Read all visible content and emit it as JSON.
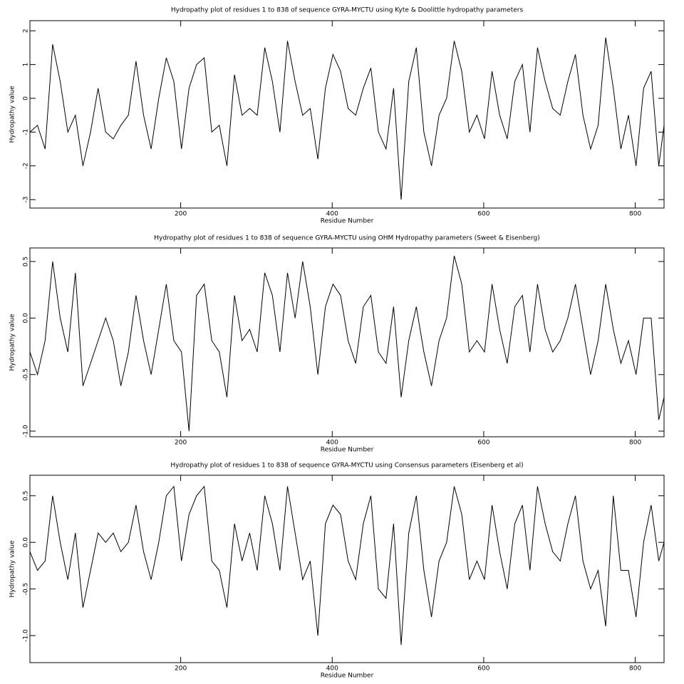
{
  "chart_data": [
    {
      "type": "line",
      "title": "Hydropathy plot of residues 1 to 838 of sequence GYRA-MYCTU using Kyte & Doolittle hydropathy parameters",
      "x_label": "Residue Number",
      "y_label": "Hydropathy value",
      "x": [
        1,
        11,
        21,
        31,
        41,
        51,
        61,
        71,
        81,
        91,
        101,
        111,
        121,
        131,
        141,
        151,
        161,
        171,
        181,
        191,
        201,
        211,
        221,
        231,
        241,
        251,
        261,
        271,
        281,
        291,
        301,
        311,
        321,
        331,
        341,
        351,
        361,
        371,
        381,
        391,
        401,
        411,
        421,
        431,
        441,
        451,
        461,
        471,
        481,
        491,
        501,
        511,
        521,
        531,
        541,
        551,
        561,
        571,
        581,
        591,
        601,
        611,
        621,
        631,
        641,
        651,
        661,
        671,
        681,
        691,
        701,
        711,
        721,
        731,
        741,
        751,
        761,
        771,
        781,
        791,
        801,
        811,
        821,
        831,
        838
      ],
      "series": [
        {
          "color": "#000000",
          "values": [
            -1.0,
            -0.8,
            -1.5,
            1.6,
            0.5,
            -1.0,
            -0.5,
            -2.0,
            -1.0,
            0.3,
            -1.0,
            -1.2,
            -0.8,
            -0.5,
            1.1,
            -0.5,
            -1.5,
            0.0,
            1.2,
            0.5,
            -1.5,
            0.3,
            1.0,
            1.2,
            -1.0,
            -0.8,
            -2.0,
            0.7,
            -0.5,
            -0.3,
            -0.5,
            1.5,
            0.5,
            -1.0,
            1.7,
            0.5,
            -0.5,
            -0.3,
            -1.8,
            0.3,
            1.3,
            0.8,
            -0.3,
            -0.5,
            0.3,
            0.9,
            -1.0,
            -1.5,
            0.3,
            -3.0,
            0.5,
            1.5,
            -1.0,
            -2.0,
            -0.5,
            0.0,
            1.7,
            0.8,
            -1.0,
            -0.5,
            -1.2,
            0.8,
            -0.5,
            -1.2,
            0.5,
            1.0,
            -1.0,
            1.5,
            0.5,
            -0.3,
            -0.5,
            0.5,
            1.3,
            -0.5,
            -1.5,
            -0.8,
            1.8,
            0.3,
            -1.5,
            -0.5,
            -2.0,
            0.3,
            0.8,
            -2.0,
            -0.8
          ]
        }
      ],
      "xlim": [
        1,
        838
      ],
      "xticks": [
        200,
        400,
        600,
        800
      ],
      "ylim": [
        -3.25,
        2.3
      ],
      "yticks": [
        -3,
        -2,
        -1,
        0,
        1,
        2
      ]
    },
    {
      "type": "line",
      "title": "Hydropathy plot of residues 1 to 838 of sequence GYRA-MYCTU using OHM  Hydropathy parameters (Sweet & Eisenberg)",
      "x_label": "Residue Number",
      "y_label": "Hydropathy value",
      "x": [
        1,
        11,
        21,
        31,
        41,
        51,
        61,
        71,
        81,
        91,
        101,
        111,
        121,
        131,
        141,
        151,
        161,
        171,
        181,
        191,
        201,
        211,
        221,
        231,
        241,
        251,
        261,
        271,
        281,
        291,
        301,
        311,
        321,
        331,
        341,
        351,
        361,
        371,
        381,
        391,
        401,
        411,
        421,
        431,
        441,
        451,
        461,
        471,
        481,
        491,
        501,
        511,
        521,
        531,
        541,
        551,
        561,
        571,
        581,
        591,
        601,
        611,
        621,
        631,
        641,
        651,
        661,
        671,
        681,
        691,
        701,
        711,
        721,
        731,
        741,
        751,
        761,
        771,
        781,
        791,
        801,
        811,
        821,
        831,
        838
      ],
      "series": [
        {
          "color": "#000000",
          "values": [
            -0.3,
            -0.5,
            -0.2,
            0.5,
            0.0,
            -0.3,
            0.4,
            -0.6,
            -0.4,
            -0.2,
            0.0,
            -0.2,
            -0.6,
            -0.3,
            0.2,
            -0.2,
            -0.5,
            -0.1,
            0.3,
            -0.2,
            -0.3,
            -1.0,
            0.2,
            0.3,
            -0.2,
            -0.3,
            -0.7,
            0.2,
            -0.2,
            -0.1,
            -0.3,
            0.4,
            0.2,
            -0.3,
            0.4,
            0.0,
            0.5,
            0.1,
            -0.5,
            0.1,
            0.3,
            0.2,
            -0.2,
            -0.4,
            0.1,
            0.2,
            -0.3,
            -0.4,
            0.1,
            -0.7,
            -0.2,
            0.1,
            -0.3,
            -0.6,
            -0.2,
            0.0,
            0.55,
            0.3,
            -0.3,
            -0.2,
            -0.3,
            0.3,
            -0.1,
            -0.4,
            0.1,
            0.2,
            -0.3,
            0.3,
            -0.1,
            -0.3,
            -0.2,
            0.0,
            0.3,
            -0.1,
            -0.5,
            -0.2,
            0.3,
            -0.1,
            -0.4,
            -0.2,
            -0.5,
            0.0,
            0.0,
            -0.9,
            -0.7
          ]
        }
      ],
      "xlim": [
        1,
        838
      ],
      "xticks": [
        200,
        400,
        600,
        800
      ],
      "ylim": [
        -1.05,
        0.62
      ],
      "yticks": [
        {
          "value": -1,
          "label": "-1.0"
        },
        -0.5,
        {
          "value": 0,
          "label": "0.0"
        },
        0.5
      ]
    },
    {
      "type": "line",
      "title": "Hydropathy plot of residues 1 to 838 of sequence GYRA-MYCTU using Consensus parameters (Eisenberg et al)",
      "x_label": "Residue Number",
      "y_label": "Hydropathy value",
      "x": [
        1,
        11,
        21,
        31,
        41,
        51,
        61,
        71,
        81,
        91,
        101,
        111,
        121,
        131,
        141,
        151,
        161,
        171,
        181,
        191,
        201,
        211,
        221,
        231,
        241,
        251,
        261,
        271,
        281,
        291,
        301,
        311,
        321,
        331,
        341,
        351,
        361,
        371,
        381,
        391,
        401,
        411,
        421,
        431,
        441,
        451,
        461,
        471,
        481,
        491,
        501,
        511,
        521,
        531,
        541,
        551,
        561,
        571,
        581,
        591,
        601,
        611,
        621,
        631,
        641,
        651,
        661,
        671,
        681,
        691,
        701,
        711,
        721,
        731,
        741,
        751,
        761,
        771,
        781,
        791,
        801,
        811,
        821,
        831,
        838
      ],
      "series": [
        {
          "color": "#000000",
          "values": [
            -0.1,
            -0.3,
            -0.2,
            0.5,
            0.0,
            -0.4,
            0.1,
            -0.7,
            -0.3,
            0.1,
            0.0,
            0.1,
            -0.1,
            0.0,
            0.4,
            -0.1,
            -0.4,
            0.0,
            0.5,
            0.6,
            -0.2,
            0.3,
            0.5,
            0.6,
            -0.2,
            -0.3,
            -0.7,
            0.2,
            -0.2,
            0.1,
            -0.3,
            0.5,
            0.2,
            -0.3,
            0.6,
            0.1,
            -0.4,
            -0.2,
            -1.0,
            0.2,
            0.4,
            0.3,
            -0.2,
            -0.4,
            0.2,
            0.5,
            -0.5,
            -0.6,
            0.2,
            -1.1,
            0.1,
            0.5,
            -0.3,
            -0.8,
            -0.2,
            0.0,
            0.6,
            0.3,
            -0.4,
            -0.2,
            -0.4,
            0.4,
            -0.1,
            -0.5,
            0.2,
            0.4,
            -0.3,
            0.6,
            0.2,
            -0.1,
            -0.2,
            0.2,
            0.5,
            -0.2,
            -0.5,
            -0.3,
            -0.9,
            0.5,
            -0.3,
            -0.3,
            -0.8,
            0.0,
            0.4,
            -0.2,
            0.0
          ]
        }
      ],
      "xlim": [
        1,
        838
      ],
      "xticks": [
        200,
        400,
        600,
        800
      ],
      "ylim": [
        -1.29,
        0.72
      ],
      "yticks": [
        {
          "value": -1,
          "label": "-1.0"
        },
        -0.5,
        {
          "value": 0,
          "label": "0.0"
        },
        0.5
      ]
    }
  ]
}
